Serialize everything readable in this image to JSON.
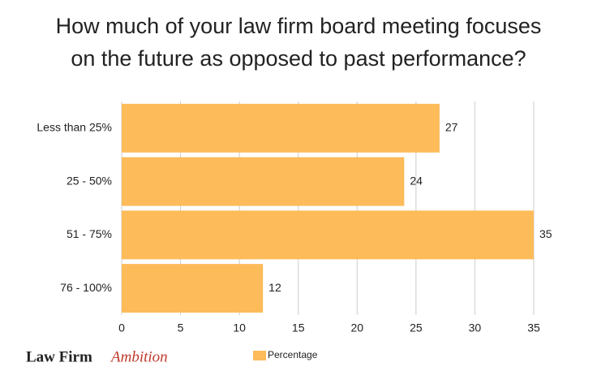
{
  "chart_data": {
    "type": "barh",
    "title": [
      "How much of your law firm board meeting focuses",
      "on the future as opposed to past performance?"
    ],
    "categories": [
      "Less than 25%",
      "25 - 50%",
      "51 - 75%",
      "76 - 100%"
    ],
    "series": [
      {
        "name": "Percentage",
        "color": "#fdbb5a",
        "values": [
          27,
          24,
          35,
          12
        ]
      }
    ],
    "xlim": [
      0,
      35
    ],
    "xticks": [
      0,
      5,
      10,
      15,
      20,
      25,
      30,
      35
    ],
    "grid": true,
    "legend": "bottom"
  },
  "logo": {
    "name": "Law Firm",
    "tagline": "Ambition"
  }
}
